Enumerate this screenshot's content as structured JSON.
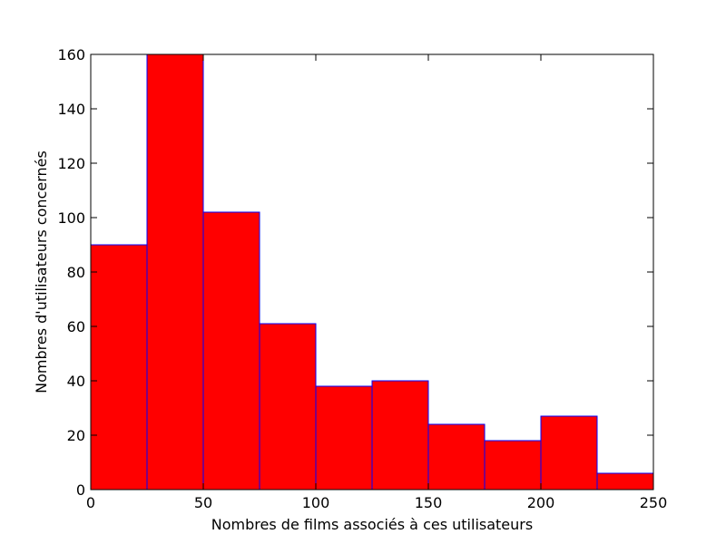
{
  "chart_data": {
    "type": "histogram",
    "xlabel": "Nombres de films associés à ces utilisateurs",
    "ylabel": "Nombres d'utilisateurs concernés",
    "bins": [
      0,
      25,
      50,
      75,
      100,
      125,
      150,
      175,
      200,
      225,
      250
    ],
    "counts": [
      90,
      160,
      102,
      61,
      38,
      40,
      24,
      18,
      27,
      6
    ],
    "color": "#ff0000",
    "edgecolor": "#0000ff",
    "xlim": [
      0,
      250
    ],
    "xticks": [
      0,
      50,
      100,
      150,
      200,
      250
    ],
    "ylim": [
      0,
      160
    ],
    "yticks": [
      0,
      20,
      40,
      60,
      80,
      100,
      120,
      140,
      160
    ]
  }
}
